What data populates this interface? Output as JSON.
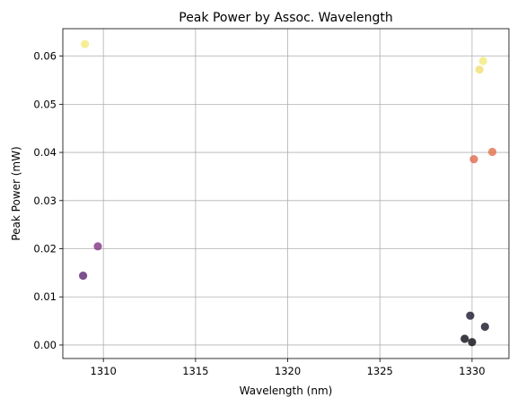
{
  "chart_data": {
    "type": "scatter",
    "title": "Peak Power by Assoc. Wavelength",
    "xlabel": "Wavelength (nm)",
    "ylabel": "Peak Power (mW)",
    "xlim": [
      1307.8,
      1332.0
    ],
    "ylim": [
      -0.0028,
      0.0657
    ],
    "xticks": [
      1310,
      1315,
      1320,
      1325,
      1330
    ],
    "yticks": [
      0.0,
      0.01,
      0.02,
      0.03,
      0.04,
      0.05,
      0.06
    ],
    "ytick_labels": [
      "0.00",
      "0.01",
      "0.02",
      "0.03",
      "0.04",
      "0.05",
      "0.06"
    ],
    "grid": true,
    "legend": "none",
    "points": [
      {
        "x": 1309.0,
        "y": 0.0625,
        "color": "#f3ea7d"
      },
      {
        "x": 1330.6,
        "y": 0.059,
        "color": "#f3ea7d"
      },
      {
        "x": 1330.4,
        "y": 0.0572,
        "color": "#f0de72"
      },
      {
        "x": 1331.1,
        "y": 0.0401,
        "color": "#e2714e"
      },
      {
        "x": 1330.1,
        "y": 0.0386,
        "color": "#e0694d"
      },
      {
        "x": 1309.7,
        "y": 0.0205,
        "color": "#7f3382"
      },
      {
        "x": 1308.9,
        "y": 0.0144,
        "color": "#5a2572"
      },
      {
        "x": 1329.9,
        "y": 0.0061,
        "color": "#1c1730"
      },
      {
        "x": 1330.7,
        "y": 0.0038,
        "color": "#171325"
      },
      {
        "x": 1329.6,
        "y": 0.0013,
        "color": "#0d0b14"
      },
      {
        "x": 1330.0,
        "y": 0.0006,
        "color": "#0d0b14"
      }
    ]
  }
}
